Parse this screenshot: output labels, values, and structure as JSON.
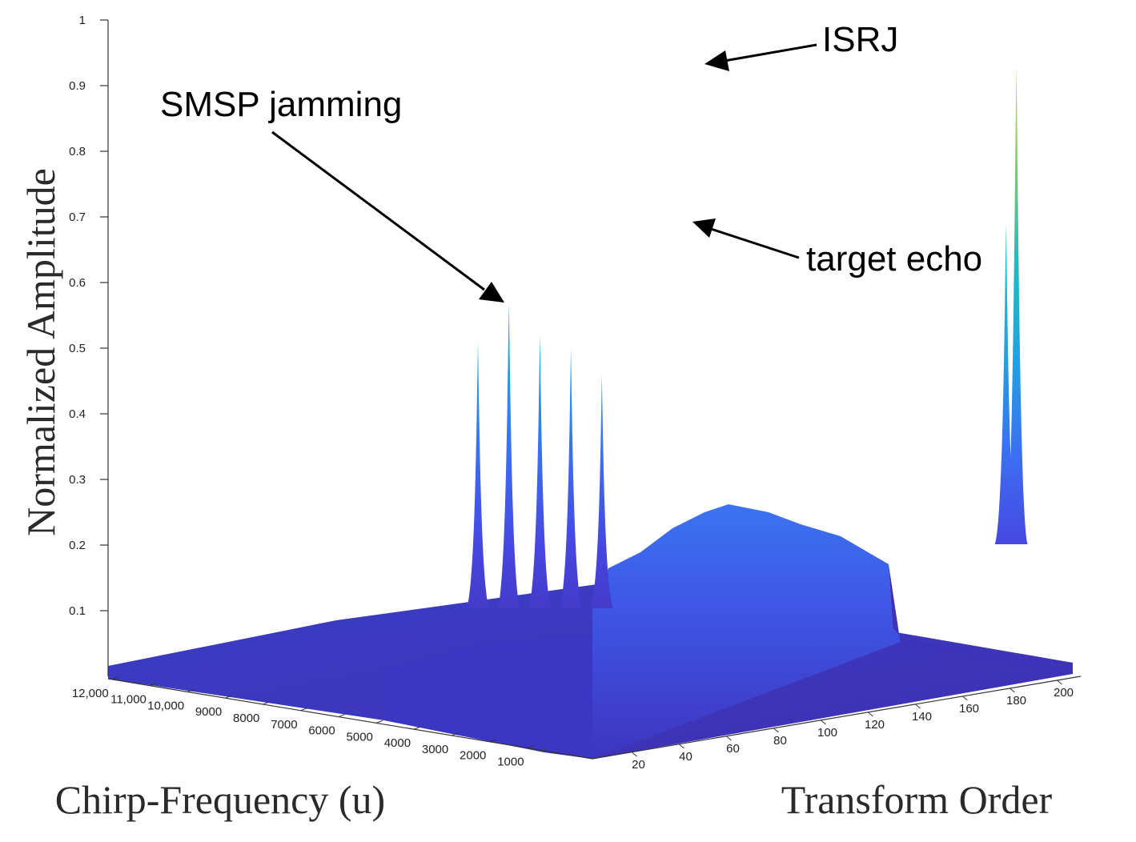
{
  "chart_data": {
    "type": "surface",
    "zlabel": "Normalized Amplitude",
    "xlabel": "Chirp-Frequency (u)",
    "ylabel": "Transform Order",
    "zlim": [
      0,
      1
    ],
    "z_ticks": [
      "0.1",
      "0.2",
      "0.3",
      "0.4",
      "0.5",
      "0.6",
      "0.7",
      "0.8",
      "0.9",
      "1"
    ],
    "x_ticks": [
      "12,000",
      "11,000",
      "10,000",
      "9000",
      "8000",
      "7000",
      "6000",
      "5000",
      "4000",
      "3000",
      "2000",
      "1000"
    ],
    "y_ticks": [
      "20",
      "40",
      "60",
      "80",
      "100",
      "120",
      "140",
      "160",
      "180",
      "200"
    ],
    "peaks": [
      {
        "label": "",
        "transform_order": 47,
        "amplitude": 0.51
      },
      {
        "label": "SMSP jamming",
        "transform_order": 50,
        "amplitude": 0.57
      },
      {
        "label": "",
        "transform_order": 53,
        "amplitude": 0.52
      },
      {
        "label": "",
        "transform_order": 56,
        "amplitude": 0.5
      },
      {
        "label": "",
        "transform_order": 59,
        "amplitude": 0.46
      },
      {
        "label": "target echo",
        "transform_order": 100,
        "amplitude": 0.69
      },
      {
        "label": "ISRJ",
        "transform_order": 101,
        "amplitude": 0.93
      }
    ],
    "annotations": [
      "SMSP jamming",
      "ISRJ",
      "target echo"
    ],
    "colormap": [
      "#3e26a8",
      "#4a4ae8",
      "#3a78f5",
      "#1fb0d6",
      "#6ac97e",
      "#d8d54a"
    ],
    "grid": false
  }
}
